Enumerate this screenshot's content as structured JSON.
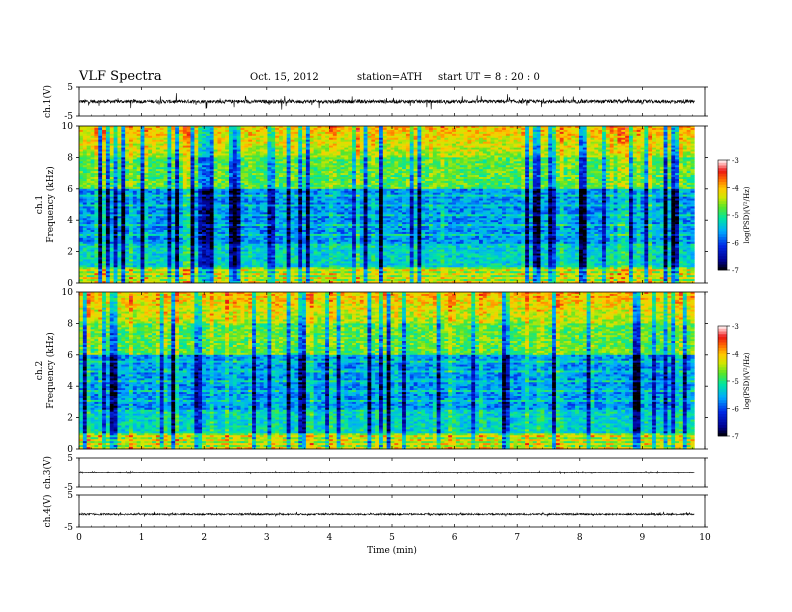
{
  "header": {
    "title": "VLF  Spectra",
    "date": "Oct. 15, 2012",
    "station": "station=ATH",
    "start": "start  UT =   8 : 20 : 0"
  },
  "chart_data": [
    {
      "type": "line",
      "name": "ch1-waveform",
      "ylabel": "ch.1(V)",
      "ylim": [
        -5,
        5
      ],
      "yticks": [
        5,
        -5
      ],
      "xlim": [
        0,
        10
      ],
      "baseline": 0,
      "noise_amplitude": 0.6,
      "spike_amplitude": 2.6,
      "duration_min": 9.83
    },
    {
      "type": "heatmap",
      "name": "ch1-spectrogram",
      "ylabel_line1": "ch.1",
      "ylabel_line2": "Frequency  (kHz)",
      "ylim": [
        0,
        10
      ],
      "yticks": [
        0,
        2,
        4,
        6,
        8,
        10
      ],
      "xlim": [
        0,
        10
      ],
      "duration_min": 9.83,
      "colorbar": {
        "label": "log(PSD)(V²/Hz)",
        "range": [
          -7,
          -3
        ],
        "ticks": [
          "-3",
          "-4",
          "-5",
          "-6",
          "-7"
        ]
      }
    },
    {
      "type": "heatmap",
      "name": "ch2-spectrogram",
      "ylabel_line1": "ch.2",
      "ylabel_line2": "Frequency  (kHz)",
      "ylim": [
        0,
        10
      ],
      "yticks": [
        0,
        2,
        4,
        6,
        8,
        10
      ],
      "xlim": [
        0,
        10
      ],
      "duration_min": 9.83,
      "colorbar": {
        "label": "log(PSD)(V²/Hz)",
        "range": [
          -7,
          -3
        ],
        "ticks": [
          "-3",
          "-4",
          "-5",
          "-6",
          "-7"
        ]
      }
    },
    {
      "type": "line",
      "name": "ch3-waveform",
      "ylabel": "ch.3(V)",
      "ylim": [
        -5,
        5
      ],
      "yticks": [
        5,
        -5
      ],
      "xlim": [
        0,
        10
      ],
      "baseline": 0,
      "noise_amplitude": 0.08,
      "spike_amplitude": 0.3,
      "duration_min": 9.83
    },
    {
      "type": "line",
      "name": "ch4-waveform",
      "ylabel": "ch.4(V)",
      "ylim": [
        -5,
        5
      ],
      "yticks": [
        5,
        -5
      ],
      "xlim": [
        0,
        10
      ],
      "baseline": -1,
      "noise_amplitude": 0.25,
      "spike_amplitude": 0.6,
      "duration_min": 9.83
    }
  ],
  "xaxis": {
    "label": "Time  (min)",
    "ticks": [
      "0",
      "1",
      "2",
      "3",
      "4",
      "5",
      "6",
      "7",
      "8",
      "9",
      "10"
    ]
  }
}
